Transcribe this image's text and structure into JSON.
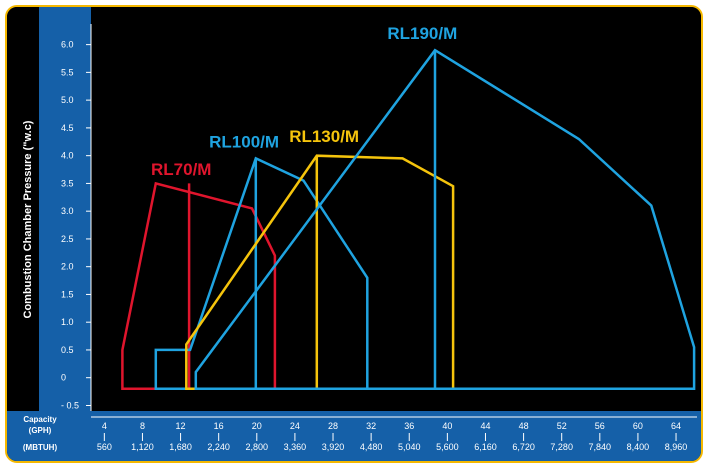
{
  "chart_data": {
    "type": "area",
    "ylabel": "Combustion Chamber Pressure (\"w.c)",
    "xlabel_primary": "Capacity\n(GPH)",
    "xlabel_secondary": "(MBTUH)",
    "ylim": [
      -0.6,
      6.3
    ],
    "xlim": [
      2.6,
      66.2
    ],
    "y_ticks": [
      "- 0.5",
      "0",
      "0.5",
      "1.0",
      "1.5",
      "2.0",
      "2.5",
      "3.0",
      "3.5",
      "4.0",
      "4.5",
      "5.0",
      "5.5",
      "6.0"
    ],
    "x_ticks": [
      {
        "gph": "4",
        "mbtuh": "560"
      },
      {
        "gph": "8",
        "mbtuh": "1,120"
      },
      {
        "gph": "12",
        "mbtuh": "1,680"
      },
      {
        "gph": "16",
        "mbtuh": "2,240"
      },
      {
        "gph": "20",
        "mbtuh": "2,800"
      },
      {
        "gph": "24",
        "mbtuh": "3,360"
      },
      {
        "gph": "28",
        "mbtuh": "3,920"
      },
      {
        "gph": "32",
        "mbtuh": "4,480"
      },
      {
        "gph": "36",
        "mbtuh": "5,040"
      },
      {
        "gph": "40",
        "mbtuh": "5,600"
      },
      {
        "gph": "44",
        "mbtuh": "6,160"
      },
      {
        "gph": "48",
        "mbtuh": "6,720"
      },
      {
        "gph": "52",
        "mbtuh": "7,280"
      },
      {
        "gph": "56",
        "mbtuh": "7,840"
      },
      {
        "gph": "60",
        "mbtuh": "8,400"
      },
      {
        "gph": "64",
        "mbtuh": "8,960"
      }
    ],
    "series": [
      {
        "name": "RL70/M",
        "color": "#e0152d",
        "outline": [
          [
            5.9,
            -0.2
          ],
          [
            5.9,
            0.5
          ],
          [
            9.4,
            3.5
          ],
          [
            19.5,
            3.05
          ],
          [
            21.9,
            2.2
          ],
          [
            21.9,
            -0.2
          ]
        ],
        "inner": [
          [
            12.9,
            -0.2
          ],
          [
            12.9,
            3.5
          ]
        ]
      },
      {
        "name": "RL100/M",
        "color": "#1fa3e0",
        "outline": [
          [
            9.4,
            -0.2
          ],
          [
            9.4,
            0.5
          ],
          [
            13.0,
            0.5
          ],
          [
            19.9,
            3.95
          ],
          [
            24.9,
            3.55
          ],
          [
            31.6,
            1.8
          ],
          [
            31.6,
            -0.2
          ]
        ],
        "inner": [
          [
            19.9,
            -0.2
          ],
          [
            19.9,
            3.95
          ]
        ]
      },
      {
        "name": "RL130/M",
        "color": "#f5c40c",
        "outline": [
          [
            12.6,
            -0.2
          ],
          [
            12.6,
            0.6
          ],
          [
            26.3,
            4.0
          ],
          [
            35.3,
            3.95
          ],
          [
            40.6,
            3.45
          ],
          [
            40.6,
            -0.2
          ]
        ],
        "inner": [
          [
            26.3,
            -0.2
          ],
          [
            26.3,
            4.0
          ]
        ]
      },
      {
        "name": "RL190/M",
        "color": "#1fa3e0",
        "outline": [
          [
            13.6,
            -0.2
          ],
          [
            13.6,
            0.1
          ],
          [
            38.7,
            5.9
          ],
          [
            53.8,
            4.3
          ],
          [
            61.4,
            3.1
          ],
          [
            65.9,
            0.55
          ],
          [
            65.9,
            -0.2
          ]
        ],
        "inner": [
          [
            38.7,
            -0.2
          ],
          [
            38.7,
            5.9
          ]
        ]
      }
    ]
  }
}
